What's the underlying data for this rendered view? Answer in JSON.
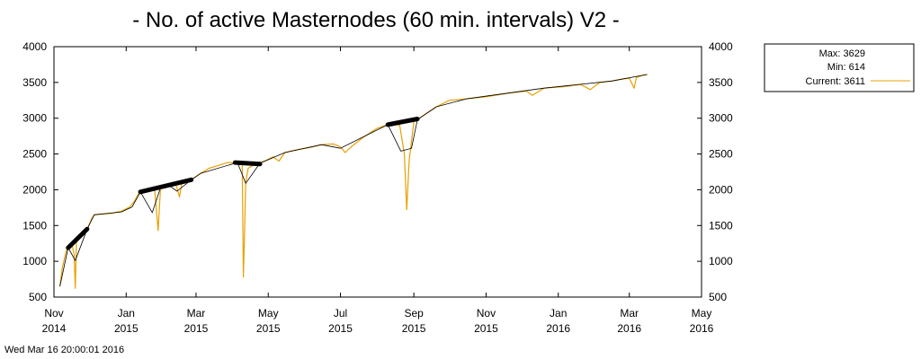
{
  "chart_data": {
    "type": "line",
    "title": "- No. of active Masternodes (60 min. intervals) V2 -",
    "timestamp": "Wed Mar 16 20:00:01 2016",
    "ylim": [
      500,
      4000
    ],
    "y_ticks": [
      500,
      1000,
      1500,
      2000,
      2500,
      3000,
      3500,
      4000
    ],
    "xlim": [
      "2014-11-01",
      "2016-05-01"
    ],
    "x_ticks": [
      {
        "date": "2014-11-01",
        "line1": "Nov",
        "line2": "2014"
      },
      {
        "date": "2015-01-01",
        "line1": "Jan",
        "line2": "2015"
      },
      {
        "date": "2015-03-01",
        "line1": "Mar",
        "line2": "2015"
      },
      {
        "date": "2015-05-01",
        "line1": "May",
        "line2": "2015"
      },
      {
        "date": "2015-07-01",
        "line1": "Jul",
        "line2": "2015"
      },
      {
        "date": "2015-09-01",
        "line1": "Sep",
        "line2": "2015"
      },
      {
        "date": "2015-11-01",
        "line1": "Nov",
        "line2": "2015"
      },
      {
        "date": "2016-01-01",
        "line1": "Jan",
        "line2": "2016"
      },
      {
        "date": "2016-03-01",
        "line1": "Mar",
        "line2": "2016"
      },
      {
        "date": "2016-05-01",
        "line1": "May",
        "line2": "2016"
      }
    ],
    "legend": {
      "position": "right",
      "max_label": "Max: 3629",
      "min_label": "Min: 614",
      "current_label": "Current: 3611"
    },
    "series": [
      {
        "color": "#e8a000",
        "points": [
          [
            "2014-11-06",
            650
          ],
          [
            "2014-11-08",
            900
          ],
          [
            "2014-11-10",
            1050
          ],
          [
            "2014-11-12",
            1180
          ],
          [
            "2014-11-14",
            1220
          ],
          [
            "2014-11-16",
            1250
          ],
          [
            "2014-11-18",
            1100
          ],
          [
            "2014-11-19",
            620
          ],
          [
            "2014-11-20",
            1280
          ],
          [
            "2014-11-23",
            1330
          ],
          [
            "2014-11-26",
            1400
          ],
          [
            "2014-11-29",
            1450
          ],
          [
            "2014-12-03",
            1600
          ],
          [
            "2014-12-05",
            1650
          ],
          [
            "2014-12-12",
            1660
          ],
          [
            "2014-12-20",
            1670
          ],
          [
            "2014-12-28",
            1700
          ],
          [
            "2015-01-04",
            1760
          ],
          [
            "2015-01-08",
            1840
          ],
          [
            "2015-01-12",
            1960
          ],
          [
            "2015-01-15",
            1980
          ],
          [
            "2015-01-20",
            2000
          ],
          [
            "2015-01-25",
            2010
          ],
          [
            "2015-01-28",
            1430
          ],
          [
            "2015-01-30",
            2030
          ],
          [
            "2015-02-05",
            2060
          ],
          [
            "2015-02-12",
            2080
          ],
          [
            "2015-02-15",
            1900
          ],
          [
            "2015-02-17",
            2090
          ],
          [
            "2015-02-25",
            2140
          ],
          [
            "2015-03-05",
            2230
          ],
          [
            "2015-03-12",
            2300
          ],
          [
            "2015-03-20",
            2340
          ],
          [
            "2015-03-28",
            2380
          ],
          [
            "2015-04-05",
            2380
          ],
          [
            "2015-04-09",
            2350
          ],
          [
            "2015-04-10",
            780
          ],
          [
            "2015-04-11",
            1400
          ],
          [
            "2015-04-12",
            2100
          ],
          [
            "2015-04-14",
            2300
          ],
          [
            "2015-04-20",
            2360
          ],
          [
            "2015-04-28",
            2400
          ],
          [
            "2015-05-05",
            2460
          ],
          [
            "2015-05-10",
            2400
          ],
          [
            "2015-05-15",
            2520
          ],
          [
            "2015-05-25",
            2560
          ],
          [
            "2015-06-05",
            2590
          ],
          [
            "2015-06-15",
            2630
          ],
          [
            "2015-06-25",
            2640
          ],
          [
            "2015-07-01",
            2600
          ],
          [
            "2015-07-05",
            2520
          ],
          [
            "2015-07-10",
            2600
          ],
          [
            "2015-07-20",
            2730
          ],
          [
            "2015-08-01",
            2860
          ],
          [
            "2015-08-10",
            2910
          ],
          [
            "2015-08-15",
            2930
          ],
          [
            "2015-08-20",
            2900
          ],
          [
            "2015-08-24",
            2500
          ],
          [
            "2015-08-26",
            1720
          ],
          [
            "2015-08-28",
            2400
          ],
          [
            "2015-09-01",
            2950
          ],
          [
            "2015-09-10",
            3050
          ],
          [
            "2015-09-20",
            3160
          ],
          [
            "2015-10-01",
            3250
          ],
          [
            "2015-10-15",
            3270
          ],
          [
            "2015-11-01",
            3300
          ],
          [
            "2015-11-20",
            3350
          ],
          [
            "2015-12-05",
            3380
          ],
          [
            "2015-12-10",
            3320
          ],
          [
            "2015-12-20",
            3420
          ],
          [
            "2016-01-05",
            3440
          ],
          [
            "2016-01-20",
            3470
          ],
          [
            "2016-01-28",
            3400
          ],
          [
            "2016-02-05",
            3500
          ],
          [
            "2016-02-15",
            3520
          ],
          [
            "2016-02-25",
            3550
          ],
          [
            "2016-03-01",
            3560
          ],
          [
            "2016-03-05",
            3420
          ],
          [
            "2016-03-07",
            3570
          ],
          [
            "2016-03-12",
            3600
          ],
          [
            "2016-03-16",
            3611
          ]
        ]
      },
      {
        "color": "#000000",
        "points": [
          [
            "2014-11-06",
            650
          ],
          [
            "2014-11-13",
            1190
          ],
          [
            "2014-11-19",
            1010
          ],
          [
            "2014-11-29",
            1450
          ],
          [
            "2014-12-05",
            1650
          ],
          [
            "2014-12-28",
            1690
          ],
          [
            "2015-01-06",
            1760
          ],
          [
            "2015-01-13",
            1970
          ],
          [
            "2015-01-23",
            1680
          ],
          [
            "2015-01-30",
            2030
          ],
          [
            "2015-02-06",
            2060
          ],
          [
            "2015-02-13",
            1980
          ],
          [
            "2015-02-25",
            2140
          ],
          [
            "2015-03-05",
            2230
          ],
          [
            "2015-04-05",
            2380
          ],
          [
            "2015-04-12",
            2090
          ],
          [
            "2015-04-24",
            2370
          ],
          [
            "2015-05-15",
            2520
          ],
          [
            "2015-06-15",
            2630
          ],
          [
            "2015-07-01",
            2580
          ],
          [
            "2015-08-10",
            2910
          ],
          [
            "2015-08-21",
            2540
          ],
          [
            "2015-08-30",
            2580
          ],
          [
            "2015-09-04",
            2980
          ],
          [
            "2015-09-20",
            3160
          ],
          [
            "2015-10-15",
            3270
          ],
          [
            "2015-12-20",
            3420
          ],
          [
            "2016-02-15",
            3520
          ],
          [
            "2016-03-16",
            3611
          ]
        ]
      }
    ],
    "highlight_segments": [
      {
        "color": "#000000",
        "from": [
          "2014-11-13",
          1190
        ],
        "to": [
          "2014-11-29",
          1450
        ]
      },
      {
        "color": "#000000",
        "from": [
          "2015-01-13",
          1970
        ],
        "to": [
          "2015-02-25",
          2140
        ]
      },
      {
        "color": "#000000",
        "from": [
          "2015-04-03",
          2380
        ],
        "to": [
          "2015-04-24",
          2360
        ]
      },
      {
        "color": "#000000",
        "from": [
          "2015-08-10",
          2910
        ],
        "to": [
          "2015-09-04",
          2990
        ]
      }
    ]
  }
}
